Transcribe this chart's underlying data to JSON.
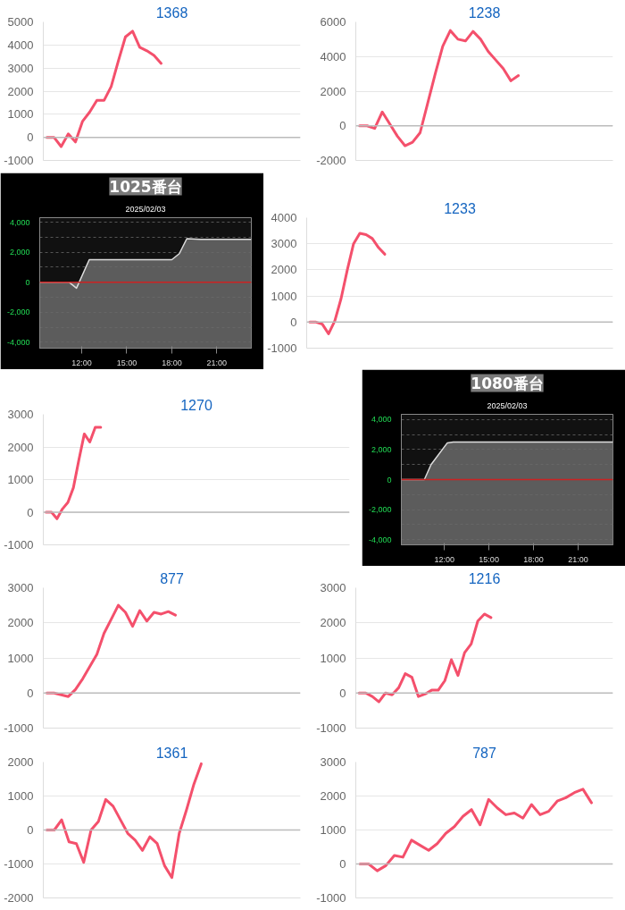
{
  "chart_data": [
    {
      "type": "line",
      "title": "1368",
      "categories": [
        null,
        null,
        null,
        null,
        null,
        null,
        null,
        null,
        null,
        null,
        null,
        null,
        null,
        null,
        null,
        null,
        null,
        null,
        null,
        null,
        null,
        null,
        null,
        null,
        null,
        null,
        null,
        null,
        null,
        null,
        null,
        null,
        null,
        null,
        null,
        null
      ],
      "ylim": [
        -1000,
        5000
      ],
      "yticks": [
        -1000,
        0,
        1000,
        2000,
        3000,
        4000,
        5000
      ],
      "grid": "y",
      "ref_lines": [
        {
          "axis": "y",
          "value": 0,
          "color": "#bbbbbb"
        }
      ],
      "series": [
        {
          "color": "#f4506c",
          "values": [
            0,
            0,
            -400,
            150,
            -200,
            700,
            1100,
            1600,
            1600,
            2200,
            3300,
            4350,
            4600,
            3900,
            3750,
            3550,
            3200,
            null,
            null,
            null,
            null,
            null,
            null,
            null,
            null,
            null,
            null,
            null,
            null,
            null,
            null,
            null,
            null,
            null,
            null,
            null
          ]
        }
      ]
    },
    {
      "type": "line",
      "title": "1238",
      "categories": [
        null,
        null,
        null,
        null,
        null,
        null,
        null,
        null,
        null,
        null,
        null,
        null,
        null,
        null,
        null,
        null,
        null,
        null,
        null,
        null,
        null,
        null,
        null,
        null,
        null,
        null,
        null,
        null,
        null,
        null,
        null,
        null,
        null,
        null
      ],
      "ylim": [
        -2000,
        6000
      ],
      "yticks": [
        -2000,
        0,
        2000,
        4000,
        6000
      ],
      "grid": "y",
      "ref_lines": [
        {
          "axis": "y",
          "value": 0,
          "color": "#bbbbbb"
        }
      ],
      "series": [
        {
          "color": "#f4506c",
          "values": [
            0,
            0,
            -150,
            800,
            100,
            -600,
            -1150,
            -950,
            -400,
            1300,
            3000,
            4600,
            5500,
            5000,
            4900,
            5450,
            5000,
            4300,
            3800,
            3300,
            2600,
            2900,
            null,
            null,
            null,
            null,
            null,
            null,
            null,
            null,
            null,
            null,
            null,
            null
          ]
        }
      ]
    },
    {
      "type": "area",
      "title": "1025番台",
      "subtitle": "2025/02/03",
      "x": [
        9.2,
        10.15,
        11.15,
        11.65,
        12.5,
        18.0,
        18.5,
        19.0,
        19.9,
        23.3
      ],
      "xlim": [
        9.2,
        23.3
      ],
      "xticks": [
        {
          "value": 12,
          "label": "12:00"
        },
        {
          "value": 15,
          "label": "15:00"
        },
        {
          "value": 18,
          "label": "18:00"
        },
        {
          "value": 21,
          "label": "21:00"
        }
      ],
      "ylim": [
        -4400,
        4300
      ],
      "yticks": [
        {
          "value": -4000,
          "label": "-4,000"
        },
        {
          "value": -3000,
          "label": null
        },
        {
          "value": -2000,
          "label": "-2,000"
        },
        {
          "value": -1000,
          "label": null
        },
        0,
        {
          "value": 1000,
          "label": null
        },
        {
          "value": 2000,
          "label": "2,000"
        },
        {
          "value": 3000,
          "label": null
        },
        {
          "value": 4000,
          "label": "4,000"
        }
      ],
      "grid": "y",
      "ref_lines": [
        {
          "axis": "y",
          "value": 0,
          "color": "#cc2222"
        }
      ],
      "bands": [
        {
          "axis": "y",
          "from": -4400,
          "to": 0,
          "color": "#6a6a6a"
        }
      ],
      "series": [
        {
          "color": "#dddddd",
          "values": [
            0,
            0,
            0,
            -400,
            1500,
            1500,
            1900,
            2900,
            2850,
            2850
          ]
        }
      ]
    },
    {
      "type": "line",
      "title": "1233",
      "categories": [
        null,
        null,
        null,
        null,
        null,
        null,
        null,
        null,
        null,
        null,
        null,
        null,
        null,
        null,
        null,
        null,
        null,
        null,
        null,
        null,
        null,
        null,
        null,
        null,
        null,
        null,
        null,
        null,
        null,
        null,
        null,
        null,
        null,
        null,
        null,
        null,
        null,
        null,
        null,
        null,
        null,
        null,
        null,
        null,
        null,
        null,
        null,
        null,
        null
      ],
      "ylim": [
        -1000,
        4000
      ],
      "yticks": [
        -1000,
        0,
        1000,
        2000,
        3000,
        4000
      ],
      "grid": "y",
      "ref_lines": [
        {
          "axis": "y",
          "value": 0,
          "color": "#bbbbbb"
        }
      ],
      "series": [
        {
          "color": "#f4506c",
          "values": [
            0,
            0,
            -80,
            -450,
            50,
            900,
            2000,
            3000,
            3400,
            3350,
            3200,
            2850,
            2600,
            null,
            null,
            null,
            null,
            null,
            null,
            null,
            null,
            null,
            null,
            null,
            null,
            null,
            null,
            null,
            null,
            null,
            null,
            null,
            null,
            null,
            null,
            null,
            null,
            null,
            null,
            null,
            null,
            null,
            null,
            null,
            null,
            null,
            null,
            null,
            null
          ]
        }
      ]
    },
    {
      "type": "line",
      "title": "1270",
      "categories": [
        null,
        null,
        null,
        null,
        null,
        null,
        null,
        null,
        null,
        null,
        null,
        null,
        null,
        null,
        null,
        null,
        null,
        null,
        null,
        null,
        null,
        null,
        null,
        null,
        null,
        null,
        null,
        null,
        null,
        null,
        null,
        null,
        null,
        null,
        null,
        null,
        null,
        null,
        null,
        null,
        null,
        null,
        null,
        null,
        null,
        null,
        null,
        null,
        null,
        null,
        null,
        null,
        null,
        null,
        null,
        null
      ],
      "ylim": [
        -1000,
        3000
      ],
      "yticks": [
        -1000,
        0,
        1000,
        2000,
        3000
      ],
      "grid": "y",
      "ref_lines": [
        {
          "axis": "y",
          "value": 0,
          "color": "#bbbbbb"
        }
      ],
      "series": [
        {
          "color": "#f4506c",
          "values": [
            0,
            0,
            -200,
            100,
            300,
            750,
            1600,
            2400,
            2150,
            2600,
            2600,
            null,
            null,
            null,
            null,
            null,
            null,
            null,
            null,
            null,
            null,
            null,
            null,
            null,
            null,
            null,
            null,
            null,
            null,
            null,
            null,
            null,
            null,
            null,
            null,
            null,
            null,
            null,
            null,
            null,
            null,
            null,
            null,
            null,
            null,
            null,
            null,
            null,
            null,
            null,
            null,
            null,
            null,
            null,
            null,
            null
          ]
        }
      ]
    },
    {
      "type": "area",
      "title": "1080番台",
      "subtitle": "2025/02/03",
      "x": [
        9.1,
        10.65,
        11.1,
        12.2,
        12.6,
        23.35
      ],
      "xlim": [
        9.1,
        23.35
      ],
      "xticks": [
        {
          "value": 12,
          "label": "12:00"
        },
        {
          "value": 15,
          "label": "15:00"
        },
        {
          "value": 18,
          "label": "18:00"
        },
        {
          "value": 21,
          "label": "21:00"
        }
      ],
      "ylim": [
        -4350,
        4350
      ],
      "yticks": [
        {
          "value": -4000,
          "label": "-4,000"
        },
        {
          "value": -3000,
          "label": null
        },
        {
          "value": -2000,
          "label": "-2,000"
        },
        {
          "value": -1000,
          "label": null
        },
        0,
        {
          "value": 1000,
          "label": null
        },
        {
          "value": 2000,
          "label": "2,000"
        },
        {
          "value": 3000,
          "label": null
        },
        {
          "value": 4000,
          "label": "4,000"
        }
      ],
      "grid": "y",
      "ref_lines": [
        {
          "axis": "y",
          "value": 0,
          "color": "#cc2222"
        }
      ],
      "bands": [
        {
          "axis": "y",
          "from": -4350,
          "to": 0,
          "color": "#6a6a6a"
        }
      ],
      "series": [
        {
          "color": "#dddddd",
          "values": [
            0,
            0,
            1000,
            2450,
            2500,
            2500
          ]
        }
      ]
    },
    {
      "type": "line",
      "title": "877",
      "categories": [
        null,
        null,
        null,
        null,
        null,
        null,
        null,
        null,
        null,
        null,
        null,
        null,
        null,
        null,
        null,
        null,
        null,
        null,
        null,
        null,
        null,
        null,
        null,
        null,
        null,
        null,
        null,
        null,
        null,
        null,
        null,
        null,
        null,
        null,
        null,
        null
      ],
      "ylim": [
        -1000,
        3000
      ],
      "yticks": [
        -1000,
        0,
        1000,
        2000,
        3000
      ],
      "grid": "y",
      "ref_lines": [
        {
          "axis": "y",
          "value": 0,
          "color": "#bbbbbb"
        }
      ],
      "series": [
        {
          "color": "#f4506c",
          "values": [
            0,
            0,
            -50,
            -100,
            100,
            400,
            750,
            1100,
            1700,
            2100,
            2500,
            2300,
            1900,
            2350,
            2050,
            2300,
            2250,
            2320,
            2220,
            null,
            null,
            null,
            null,
            null,
            null,
            null,
            null,
            null,
            null,
            null,
            null,
            null,
            null,
            null,
            null,
            null
          ]
        }
      ]
    },
    {
      "type": "line",
      "title": "1216",
      "categories": [
        null,
        null,
        null,
        null,
        null,
        null,
        null,
        null,
        null,
        null,
        null,
        null,
        null,
        null,
        null,
        null,
        null,
        null,
        null,
        null,
        null,
        null,
        null,
        null,
        null,
        null,
        null,
        null,
        null,
        null,
        null,
        null,
        null,
        null,
        null,
        null,
        null,
        null,
        null
      ],
      "ylim": [
        -1000,
        3000
      ],
      "yticks": [
        -1000,
        0,
        1000,
        2000,
        3000
      ],
      "grid": "y",
      "ref_lines": [
        {
          "axis": "y",
          "value": 0,
          "color": "#bbbbbb"
        }
      ],
      "series": [
        {
          "color": "#f4506c",
          "values": [
            0,
            0,
            -100,
            -250,
            0,
            -50,
            150,
            550,
            450,
            -100,
            -30,
            80,
            80,
            350,
            950,
            500,
            1150,
            1400,
            2050,
            2250,
            2150,
            null,
            null,
            null,
            null,
            null,
            null,
            null,
            null,
            null,
            null,
            null,
            null,
            null,
            null,
            null,
            null,
            null,
            null
          ]
        }
      ]
    },
    {
      "type": "line",
      "title": "1361",
      "categories": [
        null,
        null,
        null,
        null,
        null,
        null,
        null,
        null,
        null,
        null,
        null,
        null,
        null,
        null,
        null,
        null,
        null,
        null,
        null,
        null,
        null,
        null,
        null,
        null,
        null,
        null,
        null,
        null,
        null,
        null,
        null,
        null,
        null,
        null,
        null
      ],
      "ylim": [
        -2000,
        2000
      ],
      "yticks": [
        -2000,
        -1000,
        0,
        1000,
        2000
      ],
      "grid": "y",
      "ref_lines": [
        {
          "axis": "y",
          "value": 0,
          "color": "#bbbbbb"
        }
      ],
      "series": [
        {
          "color": "#f4506c",
          "values": [
            0,
            0,
            300,
            -350,
            -400,
            -950,
            0,
            250,
            900,
            700,
            300,
            -100,
            -300,
            -600,
            -200,
            -400,
            -1050,
            -1400,
            -100,
            600,
            1350,
            1950,
            null,
            null,
            null,
            null,
            null,
            null,
            null,
            null,
            null,
            null,
            null,
            null,
            null
          ]
        }
      ]
    },
    {
      "type": "line",
      "title": "787",
      "categories": [
        null,
        null,
        null,
        null,
        null,
        null,
        null,
        null,
        null,
        null,
        null,
        null,
        null,
        null,
        null,
        null,
        null,
        null,
        null,
        null,
        null,
        null,
        null,
        null,
        null,
        null,
        null,
        null,
        null,
        null
      ],
      "ylim": [
        -1000,
        3000
      ],
      "yticks": [
        -1000,
        0,
        1000,
        2000,
        3000
      ],
      "grid": "y",
      "ref_lines": [
        {
          "axis": "y",
          "value": 0,
          "color": "#bbbbbb"
        }
      ],
      "series": [
        {
          "color": "#f4506c",
          "values": [
            0,
            0,
            -200,
            -50,
            250,
            200,
            700,
            550,
            400,
            600,
            900,
            1100,
            1400,
            1600,
            1150,
            1900,
            1650,
            1450,
            1500,
            1350,
            1750,
            1450,
            1550,
            1850,
            1950,
            2100,
            2200,
            1800,
            null,
            null
          ]
        }
      ]
    }
  ]
}
